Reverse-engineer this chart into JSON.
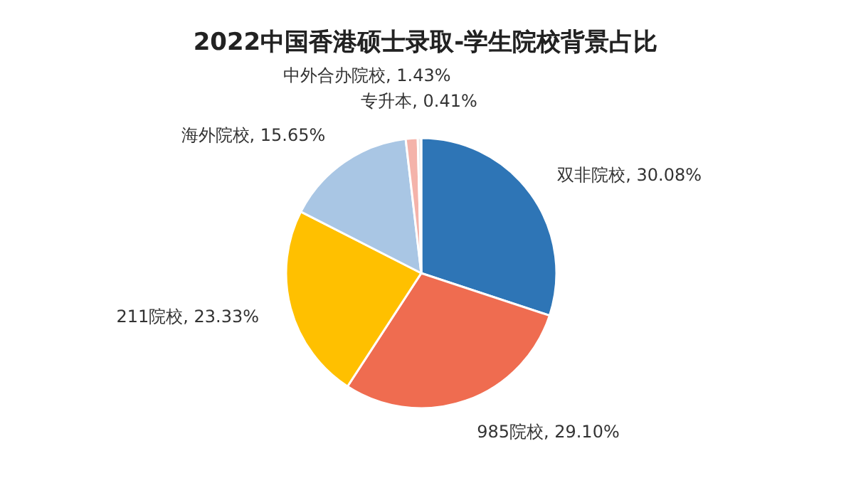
{
  "chart_data": {
    "type": "pie",
    "title": "2022中国香港硕士录取-学生院校背景占比",
    "categories": [
      "双非院校",
      "985院校",
      "211院校",
      "海外院校",
      "中外合办院校",
      "专升本"
    ],
    "values": [
      30.08,
      29.1,
      23.33,
      15.65,
      1.43,
      0.41
    ],
    "value_labels": [
      "30.08%",
      "29.10%",
      "23.33%",
      "15.65%",
      "1.43%",
      "0.41%"
    ],
    "colors": [
      "#2e75b6",
      "#ef6c50",
      "#ffc000",
      "#a9c6e4",
      "#f4b3aa",
      "#e8e8e8"
    ]
  }
}
